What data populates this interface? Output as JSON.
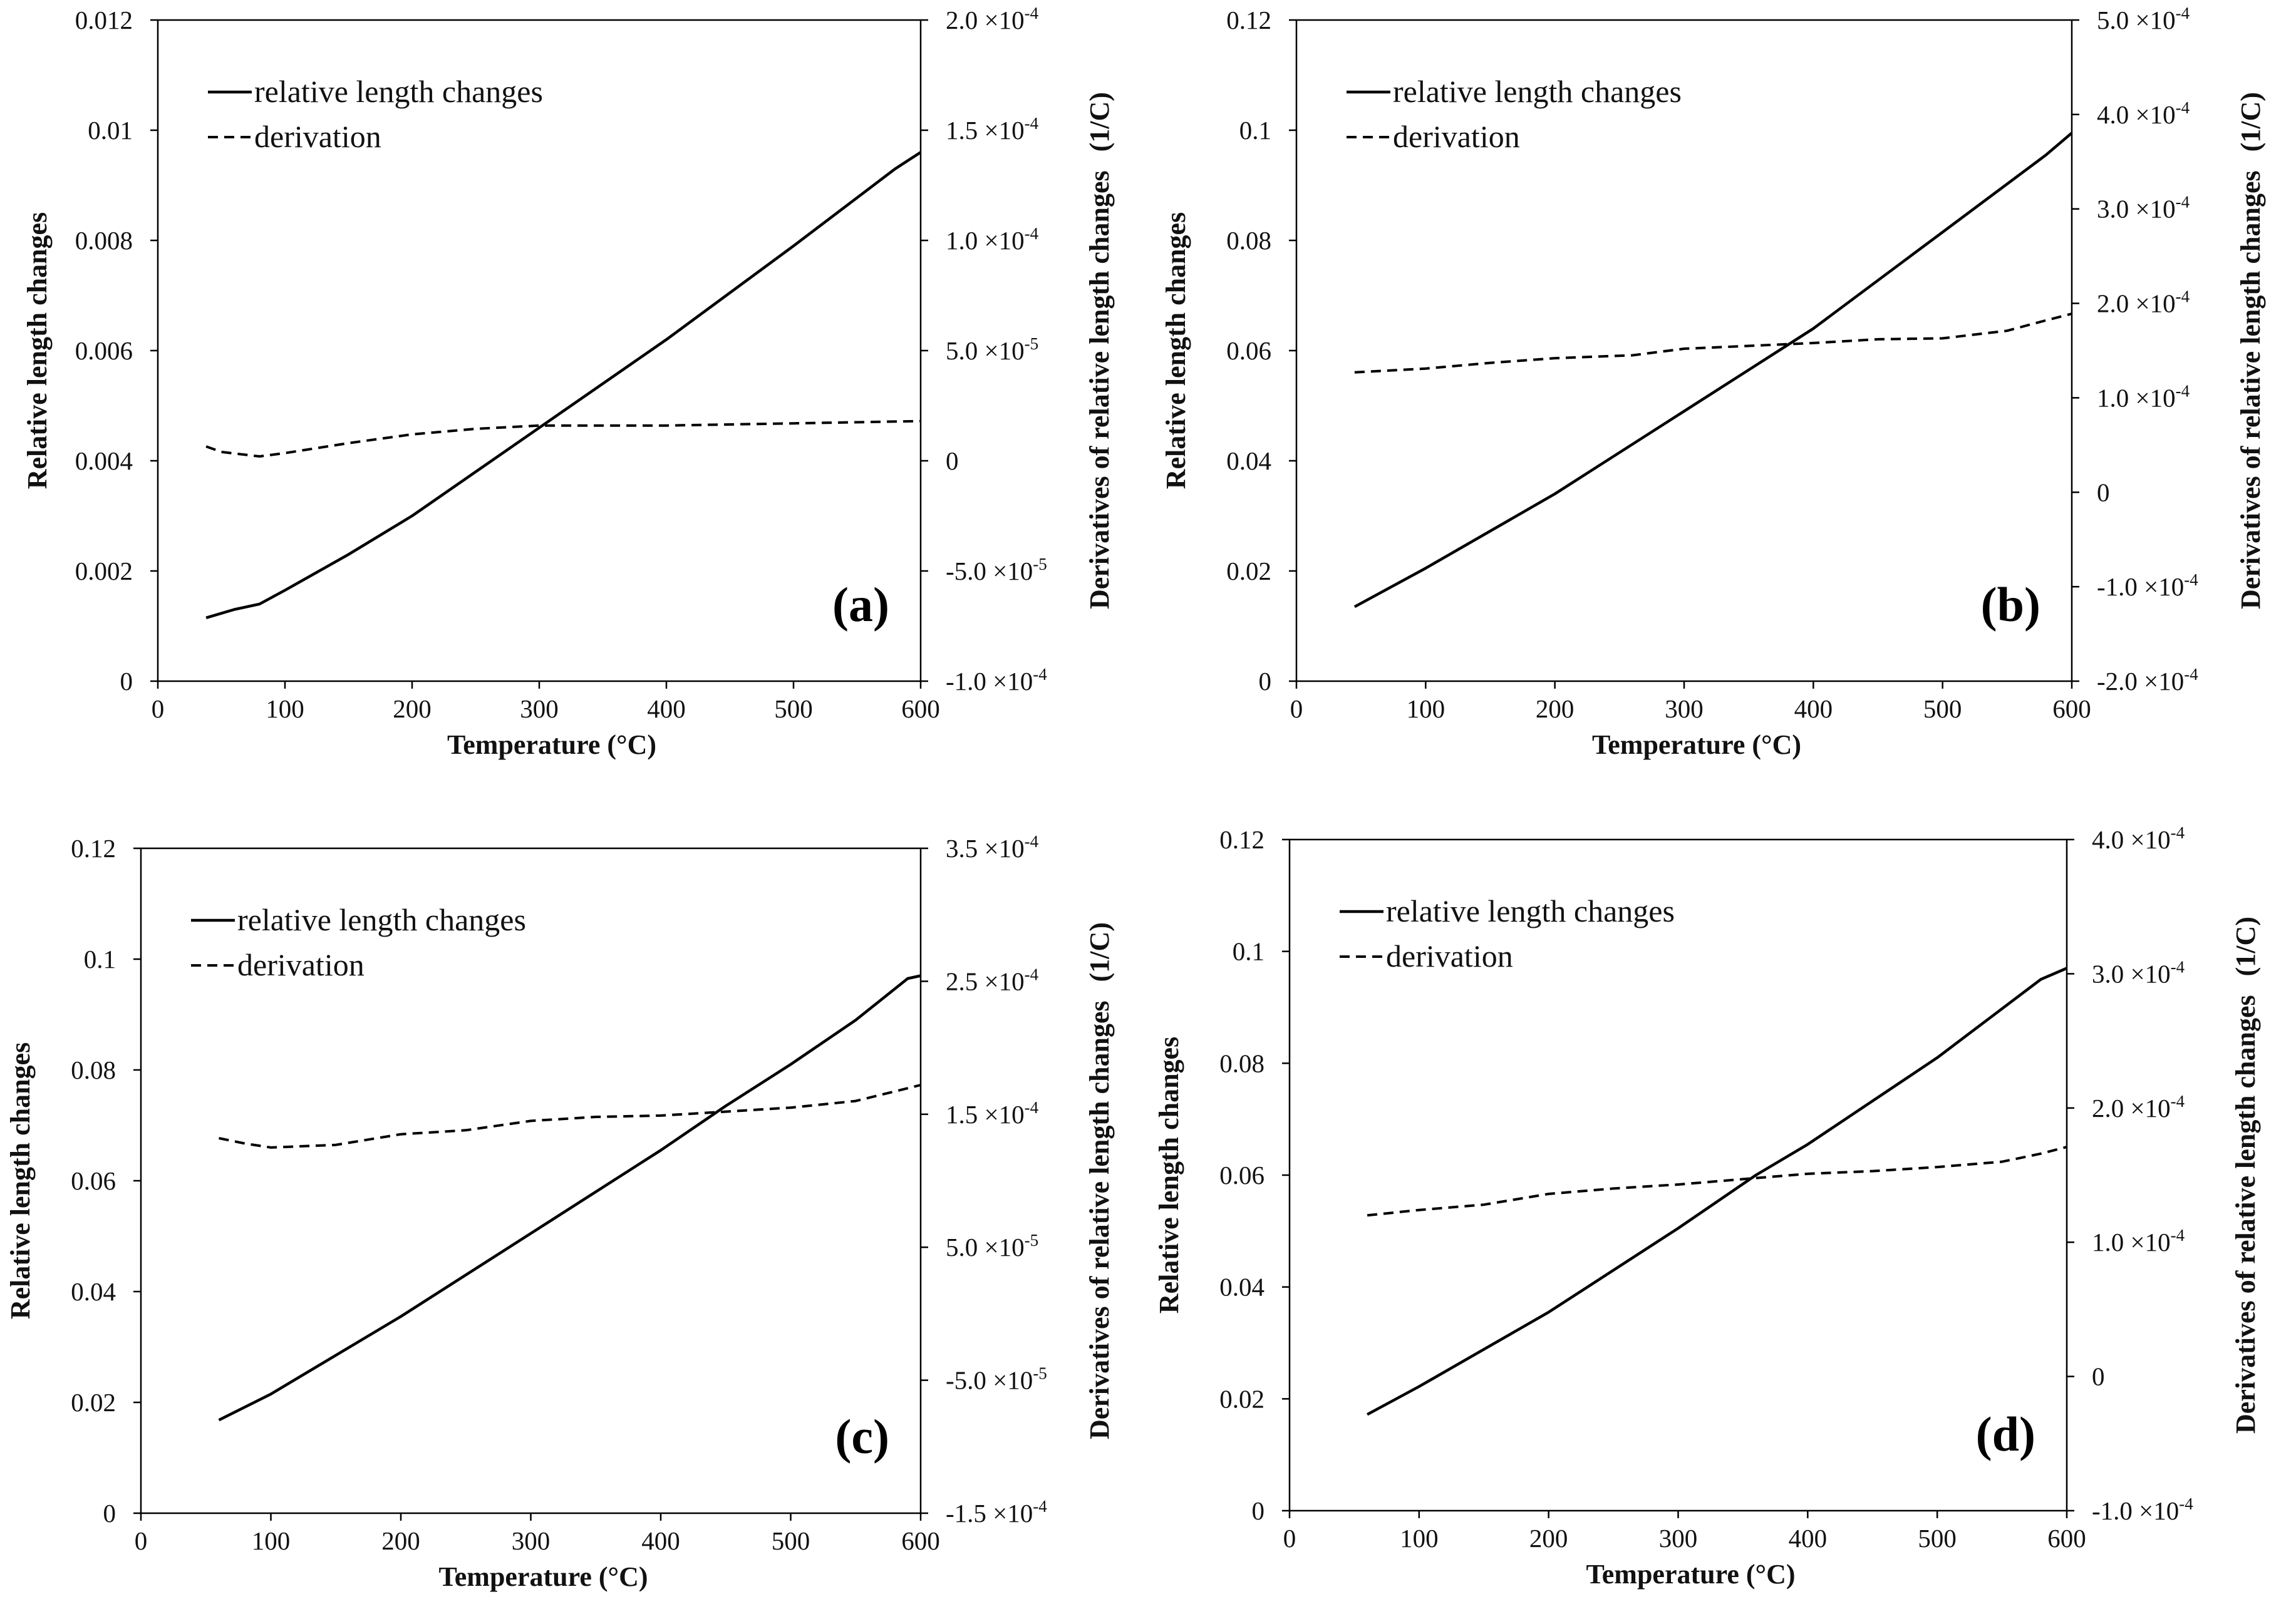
{
  "chart_data": [
    {
      "type": "line",
      "panel_label": "(a)",
      "xlabel": "Temperature (°C)",
      "ylabel": "Relative length changes",
      "y2label": "Derivatives of relative length changes",
      "y2unit": "(1/C)",
      "xlim": [
        0,
        600
      ],
      "ylim": [
        0,
        0.012
      ],
      "y2lim": [
        -0.0001,
        0.0002
      ],
      "xticks": [
        "0",
        "100",
        "200",
        "300",
        "400",
        "500",
        "600"
      ],
      "yticks": [
        "0",
        "0.002",
        "0.004",
        "0.006",
        "0.008",
        "0.01",
        "0.012"
      ],
      "y2ticks": [
        {
          "mantissa": "-1.0",
          "exp": "-4"
        },
        {
          "mantissa": "-5.0",
          "exp": "-5"
        },
        {
          "mantissa": "0",
          "exp": ""
        },
        {
          "mantissa": "5.0",
          "exp": "-5"
        },
        {
          "mantissa": "1.0",
          "exp": "-4"
        },
        {
          "mantissa": "1.5",
          "exp": "-4"
        },
        {
          "mantissa": "2.0",
          "exp": "-4"
        }
      ],
      "legend": [
        "relative length changes",
        "derivation"
      ],
      "series": [
        {
          "name": "relative length changes",
          "axis": "left",
          "x": [
            38,
            60,
            80,
            100,
            150,
            200,
            300,
            400,
            500,
            580,
            600
          ],
          "y": [
            0.00115,
            0.0013,
            0.0014,
            0.00165,
            0.0023,
            0.003,
            0.0046,
            0.0062,
            0.0079,
            0.0093,
            0.0096
          ]
        },
        {
          "name": "derivation",
          "axis": "right",
          "x": [
            38,
            50,
            80,
            100,
            150,
            200,
            250,
            300,
            400,
            500,
            600
          ],
          "y": [
            6.5e-06,
            4e-06,
            2e-06,
            3.5e-06,
            8e-06,
            1.2e-05,
            1.45e-05,
            1.6e-05,
            1.6e-05,
            1.7e-05,
            1.8e-05
          ]
        }
      ]
    },
    {
      "type": "line",
      "panel_label": "(b)",
      "xlabel": "Temperature (°C)",
      "ylabel": "Relative length changes",
      "y2label": "Derivatives of relative length changes",
      "y2unit": "(1/C)",
      "xlim": [
        0,
        600
      ],
      "ylim": [
        0,
        0.12
      ],
      "y2lim": [
        -0.0002,
        0.0005
      ],
      "xticks": [
        "0",
        "100",
        "200",
        "300",
        "400",
        "500",
        "600"
      ],
      "yticks": [
        "0",
        "0.02",
        "0.04",
        "0.06",
        "0.08",
        "0.1",
        "0.12"
      ],
      "y2ticks": [
        {
          "mantissa": "-2.0",
          "exp": "-4"
        },
        {
          "mantissa": "-1.0",
          "exp": "-4"
        },
        {
          "mantissa": "0",
          "exp": ""
        },
        {
          "mantissa": "1.0",
          "exp": "-4"
        },
        {
          "mantissa": "2.0",
          "exp": "-4"
        },
        {
          "mantissa": "3.0",
          "exp": "-4"
        },
        {
          "mantissa": "4.0",
          "exp": "-4"
        },
        {
          "mantissa": "5.0",
          "exp": "-4"
        }
      ],
      "legend": [
        "relative length changes",
        "derivation"
      ],
      "series": [
        {
          "name": "relative length changes",
          "axis": "left",
          "x": [
            45,
            100,
            200,
            300,
            380,
            400,
            500,
            580,
            600
          ],
          "y": [
            0.0135,
            0.0205,
            0.034,
            0.049,
            0.061,
            0.064,
            0.0815,
            0.0955,
            0.0995
          ]
        },
        {
          "name": "derivation",
          "axis": "right",
          "x": [
            45,
            100,
            150,
            200,
            260,
            300,
            350,
            400,
            450,
            500,
            550,
            580,
            600
          ],
          "y": [
            0.000127,
            0.000131,
            0.000137,
            0.000142,
            0.000145,
            0.000152,
            0.000155,
            0.000158,
            0.000162,
            0.000163,
            0.000171,
            0.000182,
            0.000189
          ]
        }
      ]
    },
    {
      "type": "line",
      "panel_label": "(c)",
      "xlabel": "Temperature (°C)",
      "ylabel": "Relative length changes",
      "y2label": "Derivatives of relative length changes",
      "y2unit": "(1/C)",
      "xlim": [
        0,
        600
      ],
      "ylim": [
        0,
        0.12
      ],
      "y2lim": [
        -0.00015,
        0.00035
      ],
      "xticks": [
        "0",
        "100",
        "200",
        "300",
        "400",
        "500",
        "600"
      ],
      "yticks": [
        "0",
        "0.02",
        "0.04",
        "0.06",
        "0.08",
        "0.1",
        "0.12"
      ],
      "y2ticks": [
        {
          "mantissa": "-1.5",
          "exp": "-4"
        },
        {
          "mantissa": "-5.0",
          "exp": "-5"
        },
        {
          "mantissa": "5.0",
          "exp": "-5"
        },
        {
          "mantissa": "1.5",
          "exp": "-4"
        },
        {
          "mantissa": "2.5",
          "exp": "-4"
        },
        {
          "mantissa": "3.5",
          "exp": "-4"
        }
      ],
      "y2tickvalues": [
        -0.00015,
        -5e-05,
        5e-05,
        0.00015,
        0.00025,
        0.00035
      ],
      "legend": [
        "relative length changes",
        "derivation"
      ],
      "series": [
        {
          "name": "relative length changes",
          "axis": "left",
          "x": [
            60,
            100,
            200,
            300,
            400,
            450,
            500,
            550,
            590,
            600
          ],
          "y": [
            0.0168,
            0.0215,
            0.0355,
            0.0505,
            0.0655,
            0.0735,
            0.081,
            0.089,
            0.0965,
            0.097
          ]
        },
        {
          "name": "derivation",
          "axis": "right",
          "x": [
            60,
            80,
            100,
            150,
            200,
            250,
            300,
            350,
            400,
            450,
            500,
            550,
            600
          ],
          "y": [
            0.000132,
            0.000128,
            0.000125,
            0.000127,
            0.000135,
            0.000138,
            0.000145,
            0.000148,
            0.000149,
            0.000152,
            0.000155,
            0.00016,
            0.000172
          ]
        }
      ]
    },
    {
      "type": "line",
      "panel_label": "(d)",
      "xlabel": "Temperature (°C)",
      "ylabel": "Relative length changes",
      "y2label": "Derivatives of relative length changes",
      "y2unit": "(1/C)",
      "xlim": [
        0,
        600
      ],
      "ylim": [
        0,
        0.12
      ],
      "y2lim": [
        -0.0001,
        0.0004
      ],
      "xticks": [
        "0",
        "100",
        "200",
        "300",
        "400",
        "500",
        "600"
      ],
      "yticks": [
        "0",
        "0.02",
        "0.04",
        "0.06",
        "0.08",
        "0.1",
        "0.12"
      ],
      "y2ticks": [
        {
          "mantissa": "-1.0",
          "exp": "-4"
        },
        {
          "mantissa": "0",
          "exp": ""
        },
        {
          "mantissa": "1.0",
          "exp": "-4"
        },
        {
          "mantissa": "2.0",
          "exp": "-4"
        },
        {
          "mantissa": "3.0",
          "exp": "-4"
        },
        {
          "mantissa": "4.0",
          "exp": "-4"
        }
      ],
      "legend": [
        "relative length changes",
        "derivation"
      ],
      "series": [
        {
          "name": "relative length changes",
          "axis": "left",
          "x": [
            60,
            100,
            200,
            300,
            360,
            400,
            500,
            580,
            600
          ],
          "y": [
            0.0172,
            0.0222,
            0.0355,
            0.0505,
            0.06,
            0.0655,
            0.081,
            0.095,
            0.097
          ]
        },
        {
          "name": "derivation",
          "axis": "right",
          "x": [
            60,
            100,
            150,
            200,
            250,
            300,
            350,
            400,
            450,
            500,
            550,
            580,
            600
          ],
          "y": [
            0.00012,
            0.000124,
            0.000128,
            0.000136,
            0.00014,
            0.000143,
            0.000147,
            0.000151,
            0.000153,
            0.000156,
            0.00016,
            0.000166,
            0.000171
          ]
        }
      ]
    }
  ]
}
